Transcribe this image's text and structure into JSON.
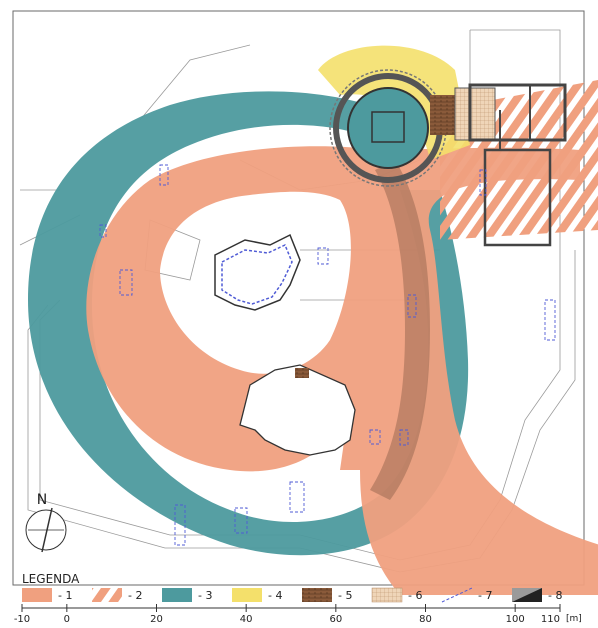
{
  "legend": {
    "title": "LEGENDA",
    "items": [
      {
        "label": "- 1",
        "swatch": "solid",
        "color": "#f0a07f"
      },
      {
        "label": "- 2",
        "swatch": "hatched",
        "color": "#f0a07f"
      },
      {
        "label": "- 3",
        "swatch": "solid",
        "color": "#4d9a9e"
      },
      {
        "label": "- 4",
        "swatch": "solid",
        "color": "#f4e06b"
      },
      {
        "label": "- 5",
        "swatch": "brick",
        "color": "#8a5a3a"
      },
      {
        "label": "- 6",
        "swatch": "grid",
        "color": "#e8c9a8"
      },
      {
        "label": "- 7",
        "swatch": "dashed-line",
        "color": "#4f5bd5"
      },
      {
        "label": "- 8",
        "swatch": "black-gray",
        "color": "#222222"
      }
    ]
  },
  "scale": {
    "ticks": [
      "-10",
      "0",
      "20",
      "40",
      "60",
      "80",
      "100",
      "110"
    ],
    "unit": "[m]"
  },
  "north_arrow": {
    "label": "N"
  },
  "colors": {
    "orange_band": "#f0a07f",
    "teal_band": "#4d9a9e",
    "yellow_zone": "#f4e06b",
    "ruin_walls": "#555555",
    "survey_lines": "#4f5bd5"
  }
}
